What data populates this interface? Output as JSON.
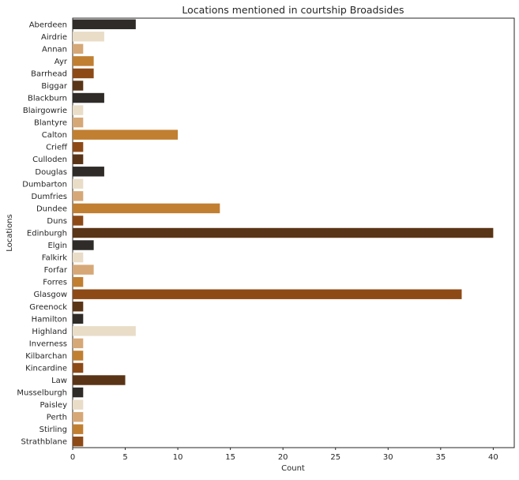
{
  "chart_data": {
    "type": "bar",
    "orientation": "horizontal",
    "title": "Locations mentioned in courtship Broadsides",
    "xlabel": "Count",
    "ylabel": "Locations",
    "xlim": [
      0,
      42
    ],
    "xticks": [
      0,
      5,
      10,
      15,
      20,
      25,
      30,
      35,
      40
    ],
    "grid": false,
    "categories": [
      "Aberdeen",
      "Airdrie",
      "Annan",
      "Ayr",
      "Barrhead",
      "Biggar",
      "Blackburn",
      "Blairgowrie",
      "Blantyre",
      "Calton",
      "Crieff",
      "Culloden",
      "Douglas",
      "Dumbarton",
      "Dumfries",
      "Dundee",
      "Duns",
      "Edinburgh",
      "Elgin",
      "Falkirk",
      "Forfar",
      "Forres",
      "Glasgow",
      "Greenock",
      "Hamilton",
      "Highland",
      "Inverness",
      "Kilbarchan",
      "Kincardine",
      "Law",
      "Musselburgh",
      "Paisley",
      "Perth",
      "Stirling",
      "Strathblane"
    ],
    "values": [
      6,
      3,
      1,
      2,
      2,
      1,
      3,
      1,
      1,
      10,
      1,
      1,
      3,
      1,
      1,
      14,
      1,
      40,
      2,
      1,
      2,
      1,
      37,
      1,
      1,
      6,
      1,
      1,
      1,
      5,
      1,
      1,
      1,
      1,
      1
    ],
    "colors": [
      "#2e2b28",
      "#e9ddc8",
      "#d6a877",
      "#c17f32",
      "#8d4a17",
      "#5a3416",
      "#2e2b28",
      "#e9ddc8",
      "#d6a877",
      "#c17f32",
      "#8d4a17",
      "#5a3416",
      "#2e2b28",
      "#e9ddc8",
      "#d6a877",
      "#c17f32",
      "#8d4a17",
      "#5a3416",
      "#2e2b28",
      "#e9ddc8",
      "#d6a877",
      "#c17f32",
      "#8d4a17",
      "#5a3416",
      "#2e2b28",
      "#e9ddc8",
      "#d6a877",
      "#c17f32",
      "#8d4a17",
      "#5a3416",
      "#2e2b28",
      "#e9ddc8",
      "#d6a877",
      "#c17f32",
      "#8d4a17"
    ]
  }
}
